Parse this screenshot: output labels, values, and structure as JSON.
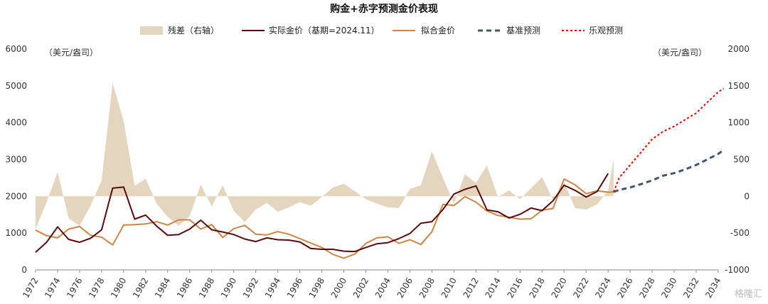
{
  "chart_data": {
    "type": "line",
    "title": "购金+赤字预测金价表现",
    "left_unit": "（美元/盎司）",
    "right_unit": "（美元/盎司）",
    "xlim": [
      1972,
      2034
    ],
    "ylim_left": [
      0,
      6000
    ],
    "ylim_right": [
      -1000,
      2000
    ],
    "left_ticks": [
      "0",
      "1000",
      "2000",
      "3000",
      "4000",
      "5000",
      "6000"
    ],
    "right_ticks": [
      "-1000",
      "-500",
      "0",
      "500",
      "1000",
      "1500",
      "2000"
    ],
    "x_ticks": [
      "1972",
      "1974",
      "1976",
      "1978",
      "1980",
      "1982",
      "1984",
      "1986",
      "1988",
      "1990",
      "1992",
      "1994",
      "1996",
      "1998",
      "2000",
      "2002",
      "2004",
      "2006",
      "2008",
      "2010",
      "2012",
      "2014",
      "2016",
      "2018",
      "2020",
      "2022",
      "2024",
      "2026",
      "2028",
      "2030",
      "2032",
      "2034"
    ],
    "legend": [
      "残差（右轴）",
      "实际金价（基期=2024.11）",
      "拟合金价",
      "基准预测",
      "乐观预测"
    ],
    "colors": {
      "residual": "#e4d5bf",
      "actual": "#5a0a0a",
      "fitted": "#cd8547",
      "base": "#44546a",
      "optimistic": "#e00000"
    },
    "series": [
      {
        "name": "残差（右轴）",
        "axis": "right",
        "points": [
          [
            1972,
            -450
          ],
          [
            1973,
            -80
          ],
          [
            1974,
            330
          ],
          [
            1975,
            -300
          ],
          [
            1976,
            -400
          ],
          [
            1977,
            -130
          ],
          [
            1978,
            220
          ],
          [
            1979,
            1540
          ],
          [
            1980,
            1020
          ],
          [
            1981,
            140
          ],
          [
            1982,
            240
          ],
          [
            1983,
            -100
          ],
          [
            1984,
            -280
          ],
          [
            1985,
            -400
          ],
          [
            1986,
            -270
          ],
          [
            1987,
            160
          ],
          [
            1988,
            -140
          ],
          [
            1989,
            150
          ],
          [
            1990,
            -200
          ],
          [
            1991,
            -350
          ],
          [
            1992,
            -180
          ],
          [
            1993,
            -90
          ],
          [
            1994,
            -210
          ],
          [
            1995,
            -150
          ],
          [
            1996,
            -80
          ],
          [
            1997,
            -130
          ],
          [
            1998,
            -10
          ],
          [
            1999,
            120
          ],
          [
            2000,
            170
          ],
          [
            2001,
            70
          ],
          [
            2002,
            -40
          ],
          [
            2003,
            -100
          ],
          [
            2004,
            -150
          ],
          [
            2005,
            -160
          ],
          [
            2006,
            100
          ],
          [
            2007,
            150
          ],
          [
            2008,
            610
          ],
          [
            2009,
            250
          ],
          [
            2010,
            -100
          ],
          [
            2011,
            300
          ],
          [
            2012,
            180
          ],
          [
            2013,
            420
          ],
          [
            2014,
            -10
          ],
          [
            2015,
            80
          ],
          [
            2016,
            -40
          ],
          [
            2017,
            110
          ],
          [
            2018,
            260
          ],
          [
            2019,
            -50
          ],
          [
            2020,
            190
          ],
          [
            2021,
            -160
          ],
          [
            2022,
            -180
          ],
          [
            2023,
            -110
          ],
          [
            2024,
            80
          ],
          [
            2024.5,
            500
          ]
        ]
      },
      {
        "name": "实际金价（基期=2024.11）",
        "axis": "left",
        "points": [
          [
            1972,
            480
          ],
          [
            1973,
            750
          ],
          [
            1974,
            1170
          ],
          [
            1975,
            830
          ],
          [
            1976,
            750
          ],
          [
            1977,
            860
          ],
          [
            1978,
            1090
          ],
          [
            1979,
            2220
          ],
          [
            1980,
            2250
          ],
          [
            1981,
            1380
          ],
          [
            1982,
            1490
          ],
          [
            1983,
            1190
          ],
          [
            1984,
            940
          ],
          [
            1985,
            960
          ],
          [
            1986,
            1110
          ],
          [
            1987,
            1350
          ],
          [
            1988,
            1090
          ],
          [
            1989,
            1030
          ],
          [
            1990,
            960
          ],
          [
            1991,
            840
          ],
          [
            1992,
            770
          ],
          [
            1993,
            870
          ],
          [
            1994,
            820
          ],
          [
            1995,
            810
          ],
          [
            1996,
            760
          ],
          [
            1997,
            580
          ],
          [
            1998,
            560
          ],
          [
            1999,
            560
          ],
          [
            2000,
            510
          ],
          [
            2001,
            500
          ],
          [
            2002,
            610
          ],
          [
            2003,
            710
          ],
          [
            2004,
            740
          ],
          [
            2005,
            850
          ],
          [
            2006,
            990
          ],
          [
            2007,
            1270
          ],
          [
            2008,
            1310
          ],
          [
            2009,
            1640
          ],
          [
            2010,
            2060
          ],
          [
            2011,
            2190
          ],
          [
            2012,
            2280
          ],
          [
            2013,
            1630
          ],
          [
            2014,
            1580
          ],
          [
            2015,
            1410
          ],
          [
            2016,
            1510
          ],
          [
            2017,
            1680
          ],
          [
            2018,
            1610
          ],
          [
            2019,
            1880
          ],
          [
            2020,
            2300
          ],
          [
            2021,
            2160
          ],
          [
            2022,
            1980
          ],
          [
            2023,
            2130
          ],
          [
            2024,
            2620
          ]
        ]
      },
      {
        "name": "拟合金价",
        "axis": "left",
        "points": [
          [
            1972,
            1080
          ],
          [
            1973,
            930
          ],
          [
            1974,
            870
          ],
          [
            1975,
            1110
          ],
          [
            1976,
            1180
          ],
          [
            1977,
            940
          ],
          [
            1978,
            890
          ],
          [
            1979,
            680
          ],
          [
            1980,
            1220
          ],
          [
            1981,
            1230
          ],
          [
            1982,
            1250
          ],
          [
            1983,
            1310
          ],
          [
            1984,
            1220
          ],
          [
            1985,
            1360
          ],
          [
            1986,
            1360
          ],
          [
            1987,
            1110
          ],
          [
            1988,
            1230
          ],
          [
            1989,
            880
          ],
          [
            1990,
            1120
          ],
          [
            1991,
            1210
          ],
          [
            1992,
            970
          ],
          [
            1993,
            950
          ],
          [
            1994,
            1040
          ],
          [
            1995,
            970
          ],
          [
            1996,
            850
          ],
          [
            1997,
            730
          ],
          [
            1998,
            610
          ],
          [
            1999,
            420
          ],
          [
            2000,
            320
          ],
          [
            2001,
            430
          ],
          [
            2002,
            720
          ],
          [
            2003,
            870
          ],
          [
            2004,
            900
          ],
          [
            2005,
            720
          ],
          [
            2006,
            820
          ],
          [
            2007,
            690
          ],
          [
            2008,
            1040
          ],
          [
            2009,
            1780
          ],
          [
            2010,
            1750
          ],
          [
            2011,
            1990
          ],
          [
            2012,
            1840
          ],
          [
            2013,
            1600
          ],
          [
            2014,
            1480
          ],
          [
            2015,
            1430
          ],
          [
            2016,
            1380
          ],
          [
            2017,
            1390
          ],
          [
            2018,
            1620
          ],
          [
            2019,
            1670
          ],
          [
            2020,
            2470
          ],
          [
            2021,
            2310
          ],
          [
            2022,
            2070
          ],
          [
            2023,
            2150
          ],
          [
            2024,
            2110
          ],
          [
            2024.5,
            2120
          ]
        ]
      },
      {
        "name": "基准预测",
        "axis": "left",
        "points": [
          [
            2024.5,
            2120
          ],
          [
            2025,
            2170
          ],
          [
            2026,
            2240
          ],
          [
            2027,
            2330
          ],
          [
            2028,
            2430
          ],
          [
            2029,
            2560
          ],
          [
            2030,
            2630
          ],
          [
            2031,
            2730
          ],
          [
            2032,
            2850
          ],
          [
            2033,
            3000
          ],
          [
            2034,
            3150
          ],
          [
            2034.5,
            3260
          ]
        ]
      },
      {
        "name": "乐观预测",
        "axis": "left",
        "points": [
          [
            2024.5,
            2120
          ],
          [
            2025,
            2500
          ],
          [
            2026,
            2850
          ],
          [
            2027,
            3200
          ],
          [
            2028,
            3550
          ],
          [
            2029,
            3760
          ],
          [
            2030,
            3900
          ],
          [
            2031,
            4080
          ],
          [
            2032,
            4260
          ],
          [
            2033,
            4550
          ],
          [
            2034,
            4830
          ],
          [
            2034.5,
            4930
          ]
        ]
      }
    ]
  },
  "watermark": "格隆汇"
}
